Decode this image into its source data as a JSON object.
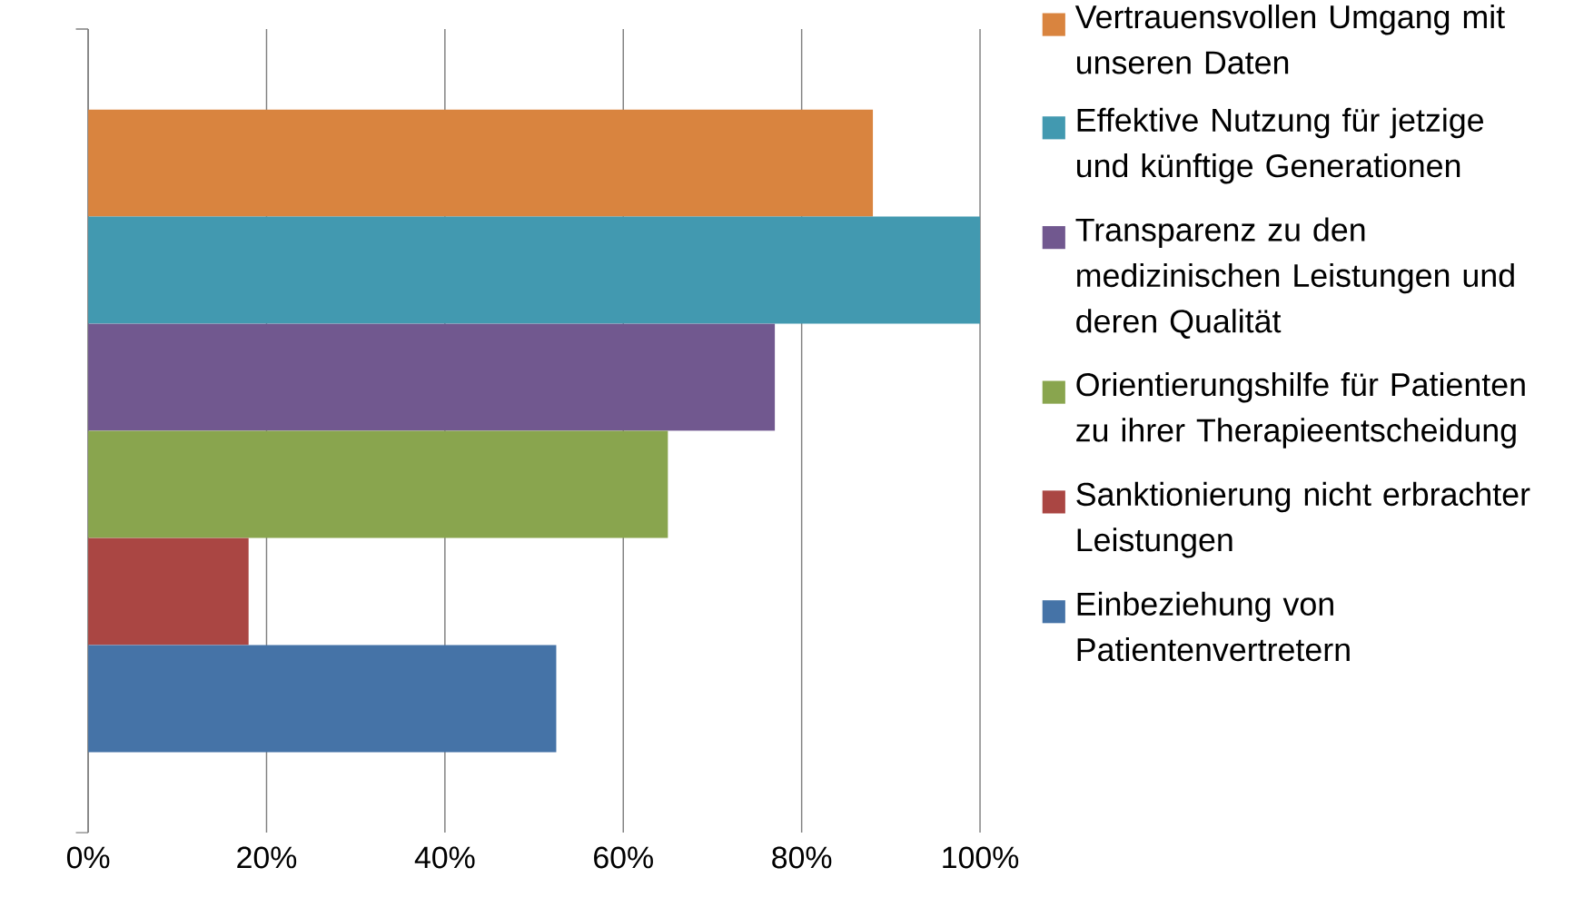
{
  "chart_data": {
    "type": "bar",
    "orientation": "horizontal",
    "categories": [
      null
    ],
    "series": [
      {
        "name": "Vertrauensvollen Umgang mit unseren Daten",
        "color": "#d9843f",
        "values": [
          88
        ]
      },
      {
        "name": "Effektive Nutzung für jetzige und künftige Generationen",
        "color": "#4299b0",
        "values": [
          100
        ]
      },
      {
        "name": "Transparenz zu den medizinischen Leistungen und deren Qualität",
        "color": "#71588f",
        "values": [
          77
        ]
      },
      {
        "name": "Orientierungshilfe für Patienten zu ihrer Therapieentscheidung",
        "color": "#89a54e",
        "values": [
          65
        ]
      },
      {
        "name": "Sanktionierung nicht erbrachter Leistungen",
        "color": "#aa4643",
        "values": [
          18
        ]
      },
      {
        "name": "Einbeziehung von Patientenvertretern",
        "color": "#4573a7",
        "values": [
          52.5
        ]
      }
    ],
    "xlim": [
      0,
      100
    ],
    "xticks": [
      {
        "value": 0,
        "label": "0%"
      },
      {
        "value": 20,
        "label": "20%"
      },
      {
        "value": 40,
        "label": "40%"
      },
      {
        "value": 60,
        "label": "60%"
      },
      {
        "value": 80,
        "label": "80%"
      },
      {
        "value": 100,
        "label": "100%"
      }
    ],
    "grid": "x",
    "legend": "right",
    "tick_labels": "x"
  }
}
